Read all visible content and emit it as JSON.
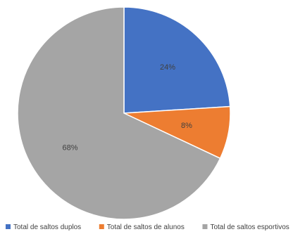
{
  "chart_data": {
    "type": "pie",
    "title": "",
    "categories": [
      "Total de saltos duplos",
      "Total de saltos de alunos",
      "Total de saltos esportivos"
    ],
    "values": [
      24,
      8,
      68
    ],
    "labels": [
      "24%",
      "8%",
      "68%"
    ],
    "colors": [
      "#4472c4",
      "#ed7d31",
      "#a5a5a5"
    ],
    "start_angle_deg": 0,
    "direction": "clockwise",
    "legend_position": "bottom"
  }
}
